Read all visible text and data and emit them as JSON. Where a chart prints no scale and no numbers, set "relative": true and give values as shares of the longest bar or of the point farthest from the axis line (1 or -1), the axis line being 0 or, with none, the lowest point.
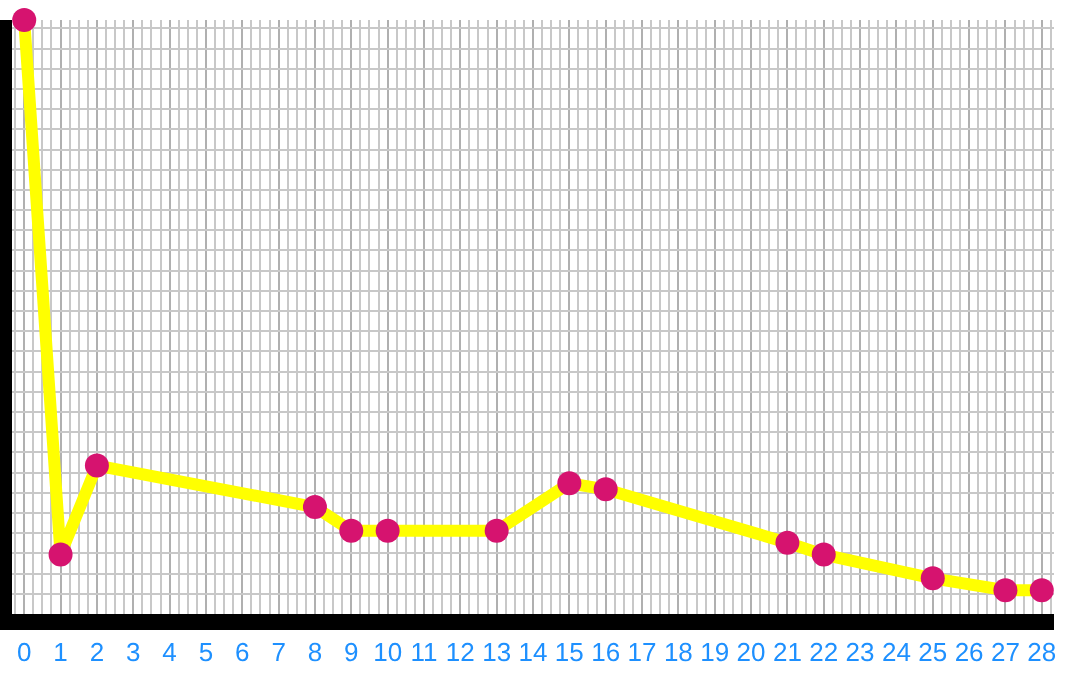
{
  "chart_data": {
    "type": "line",
    "relative": true,
    "x": [
      0,
      1,
      2,
      8,
      9,
      10,
      13,
      15,
      16,
      21,
      22,
      25,
      27,
      28
    ],
    "xlim": [
      0,
      28
    ],
    "xticks": [
      0,
      1,
      2,
      3,
      4,
      5,
      6,
      7,
      8,
      9,
      10,
      11,
      12,
      13,
      14,
      15,
      16,
      17,
      18,
      19,
      20,
      21,
      22,
      23,
      24,
      25,
      26,
      27,
      28
    ],
    "series": [
      {
        "color": "#ffff00",
        "colors": [
          "#d6136f",
          "#d6136f",
          "#d6136f",
          "#d6136f",
          "#d6136f",
          "#d6136f",
          "#d6136f",
          "#d6136f",
          "#d6136f",
          "#d6136f",
          "#d6136f",
          "#d6136f",
          "#d6136f",
          "#d6136f"
        ],
        "values": [
          1,
          0.1,
          0.25,
          0.18,
          0.14,
          0.14,
          0.14,
          0.22,
          0.21,
          0.12,
          0.1,
          0.06,
          0.04,
          0.04
        ]
      }
    ],
    "marker": "circle",
    "grid": true
  }
}
